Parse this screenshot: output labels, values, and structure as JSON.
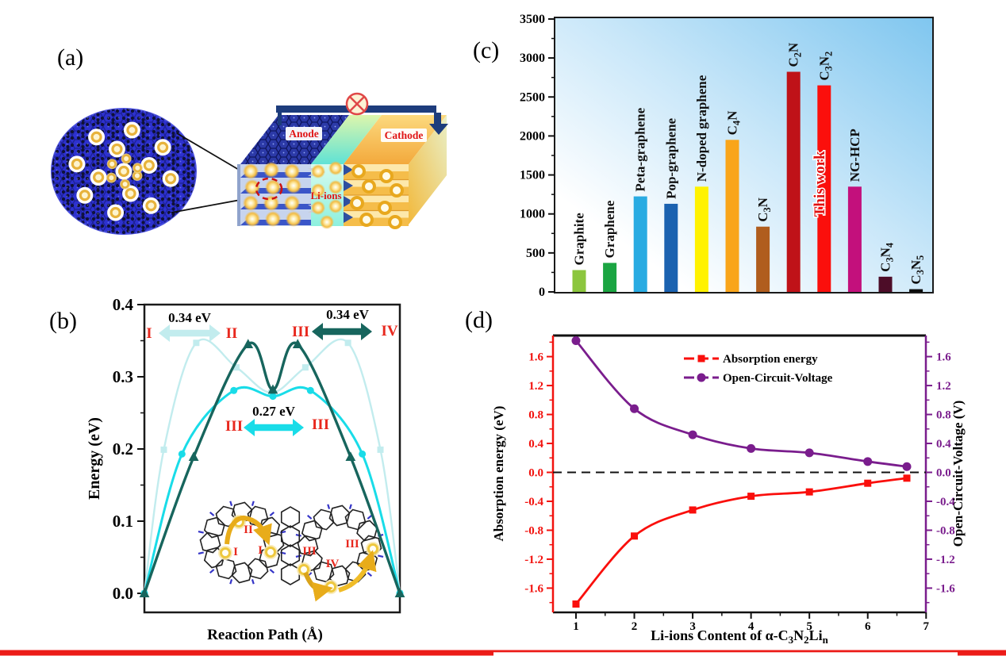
{
  "figure": {
    "panel_labels": {
      "a": "(a)",
      "b": "(b)",
      "c": "(c)",
      "d": "(d)"
    }
  },
  "footer": {
    "bar_color": "#ec1c18"
  },
  "panel_a": {
    "anode_label": "Anode",
    "cathode_label": "Cathode",
    "li_ions_label": "Li-ions"
  },
  "colors": {
    "panel_b": {
      "pale_cyan": "#c2ecee",
      "cyan": "#19dce8",
      "teal": "#17655d",
      "numeral_red": "#e8281e"
    },
    "panel_d": {
      "left_axis_red": "#f2120e",
      "right_axis_purple": "#7a1d8d"
    },
    "panel_c_background": [
      "#7fc6ef",
      "#c9e7f9",
      "#ffffff"
    ]
  },
  "chart_data": [
    {
      "panel": "b",
      "type": "line",
      "xlabel": "Reaction Path (Å)",
      "ylabel": "Energy (eV)",
      "ylim": [
        0,
        0.4
      ],
      "ytick_labels": [
        "0.0",
        "0.1",
        "0.2",
        "0.3",
        "0.4"
      ],
      "x_note": "x axis has no numeric ticks; x given as fraction of the reaction path",
      "series": [
        {
          "name": "Path I-II (barrier 0.34 eV)",
          "marker": "square",
          "color": "#c2ecee",
          "x": [
            0,
            0.076,
            0.203,
            0.36,
            0.497,
            0.63,
            0.797,
            0.924,
            1
          ],
          "y": [
            0,
            0.199,
            0.347,
            0.313,
            0.278,
            0.313,
            0.347,
            0.199,
            0
          ]
        },
        {
          "name": "Path III-III (barrier 0.27 eV)",
          "marker": "circle",
          "color": "#19dce8",
          "x": [
            0,
            0.147,
            0.35,
            0.503,
            0.65,
            0.853,
            1
          ],
          "y": [
            0,
            0.193,
            0.281,
            0.273,
            0.281,
            0.193,
            0
          ]
        },
        {
          "name": "Path III-IV (barrier 0.34 eV)",
          "marker": "triangle",
          "color": "#17655d",
          "x": [
            0,
            0.193,
            0.406,
            0.503,
            0.6,
            0.807,
            1
          ],
          "y": [
            0,
            0.189,
            0.345,
            0.282,
            0.345,
            0.189,
            0
          ]
        }
      ],
      "annotations": [
        {
          "text": "0.34 eV",
          "from": "I",
          "to": "II"
        },
        {
          "text": "0.27 eV",
          "from": "III",
          "to": "III"
        },
        {
          "text": "0.34 eV",
          "from": "III",
          "to": "IV"
        }
      ],
      "inset_labels": [
        "II",
        "I",
        "I",
        "III",
        "IV",
        "III"
      ]
    },
    {
      "panel": "c",
      "type": "bar",
      "ylim": [
        0,
        3500
      ],
      "ytick_labels": [
        "0",
        "500",
        "1000",
        "1500",
        "2000",
        "2500",
        "3000",
        "3500"
      ],
      "categories": [
        "Graphite",
        "Graphene",
        "Peta-graphene",
        "Pop-graphene",
        "N-doped graphene",
        "C{4}N",
        "C{3}N",
        "C{2}N",
        "C{3}N{2}",
        "NG-HCP",
        "C{3}N{4}",
        "C{3}N{5}"
      ],
      "values": [
        280,
        372,
        1225,
        1130,
        1350,
        1950,
        837,
        2823,
        2649,
        1350,
        195,
        35
      ],
      "colors": [
        "#8cc63e",
        "#1ba542",
        "#29abe2",
        "#1b62b0",
        "#fff200",
        "#f9a51a",
        "#b05d1e",
        "#bf1218",
        "#fb0f0c",
        "#c3107c",
        "#4d0d28",
        "#0a0a0a"
      ],
      "highlight": {
        "index": 8,
        "on_bar_label": "This work",
        "label_color": "#e01010"
      }
    },
    {
      "panel": "d",
      "type": "line",
      "xlabel": "Li-ions Content of α-C{3}N{2}Li{n}",
      "ylabel_left": "Absorption energy (eV)",
      "ylabel_right": "Open-Circuit-Voltage (V)",
      "xlim": [
        0.6,
        7
      ],
      "xtick_labels": [
        "1",
        "2",
        "3",
        "4",
        "5",
        "6",
        "7"
      ],
      "ylim": [
        -1.93,
        1.93
      ],
      "yticks": [
        -1.6,
        -1.2,
        -0.8,
        -0.4,
        0.0,
        0.4,
        0.8,
        1.2,
        1.6
      ],
      "zero_line": true,
      "legend_position": "top-right",
      "series": [
        {
          "name": "Absorption energy",
          "axis": "left",
          "marker": "square",
          "color": "#fa0f0c",
          "x": [
            1,
            2,
            3,
            4,
            5,
            6,
            6.67
          ],
          "y": [
            -1.82,
            -0.88,
            -0.52,
            -0.33,
            -0.27,
            -0.15,
            -0.08
          ]
        },
        {
          "name": "Open-Circuit-Voltage",
          "axis": "right",
          "marker": "circle",
          "color": "#7a1d8d",
          "x": [
            1,
            2,
            3,
            4,
            5,
            6,
            6.67
          ],
          "y": [
            1.82,
            0.88,
            0.52,
            0.33,
            0.27,
            0.15,
            0.08
          ]
        }
      ]
    }
  ]
}
